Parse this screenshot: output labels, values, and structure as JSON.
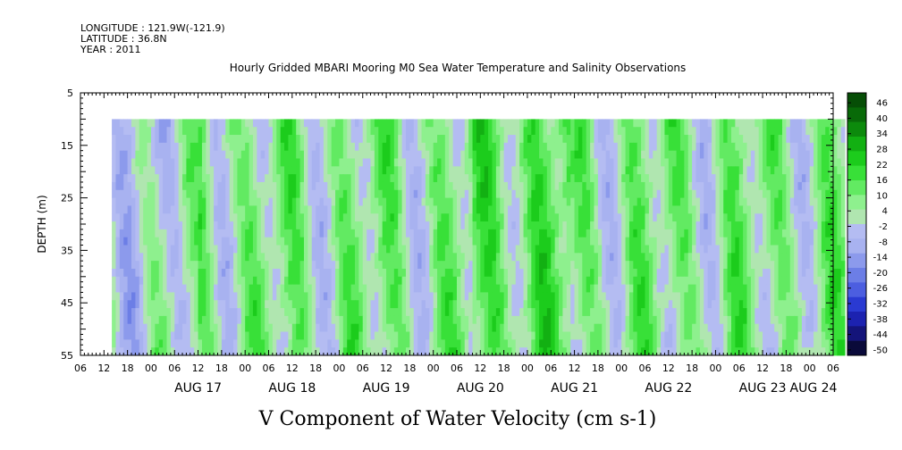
{
  "header": {
    "longitude": "LONGITUDE : 121.9W(-121.9)",
    "latitude": "LATITUDE : 36.8N",
    "year": "YEAR : 2011",
    "title": "Hourly Gridded MBARI Mooring M0 Sea Water Temperature and Salinity Observations"
  },
  "chart_data": {
    "type": "heatmap",
    "title": "V Component of Water Velocity (cm s-1)",
    "ylabel": "DEPTH (m)",
    "y_axis": {
      "range": [
        5,
        55
      ],
      "inverted": true,
      "ticks": [
        5,
        15,
        25,
        35,
        45,
        55
      ]
    },
    "x_axis": {
      "start": "AUG 16 06:00",
      "end": "AUG 24 09:00",
      "hour_ticks": [
        "06",
        "12",
        "18",
        "00",
        "06",
        "12",
        "18",
        "00",
        "06",
        "12",
        "18",
        "00",
        "06",
        "12",
        "18",
        "00",
        "06",
        "12",
        "18",
        "00",
        "06",
        "12",
        "18",
        "00",
        "06",
        "12",
        "18",
        "00",
        "06",
        "12",
        "18",
        "00",
        "06"
      ],
      "day_labels": [
        "AUG 17",
        "AUG 18",
        "AUG 19",
        "AUG 20",
        "AUG 21",
        "AUG 22",
        "AUG 23",
        "AUG 24"
      ]
    },
    "data_extent": {
      "depth_top": 10,
      "depth_bottom": 55,
      "time_start": "AUG 16 14:00",
      "time_end": "AUG 24 09:00"
    },
    "colorbar": {
      "levels": [
        46,
        40,
        34,
        28,
        22,
        16,
        10,
        4,
        -2,
        -8,
        -14,
        -20,
        -26,
        -32,
        -38,
        -44,
        -50
      ],
      "min": -50,
      "max": 50,
      "colors": [
        "#0a0a3a",
        "#14147a",
        "#1c22b0",
        "#2a3ad2",
        "#4c5ee0",
        "#6c7ee6",
        "#8c9aec",
        "#a8b2f0",
        "#b4bcf2",
        "#b0e6b0",
        "#8ef08e",
        "#62ea62",
        "#38e038",
        "#1ccc1c",
        "#12b012",
        "#0c8a0c",
        "#086a08",
        "#064e06"
      ]
    },
    "grid": false,
    "legend": "right"
  }
}
